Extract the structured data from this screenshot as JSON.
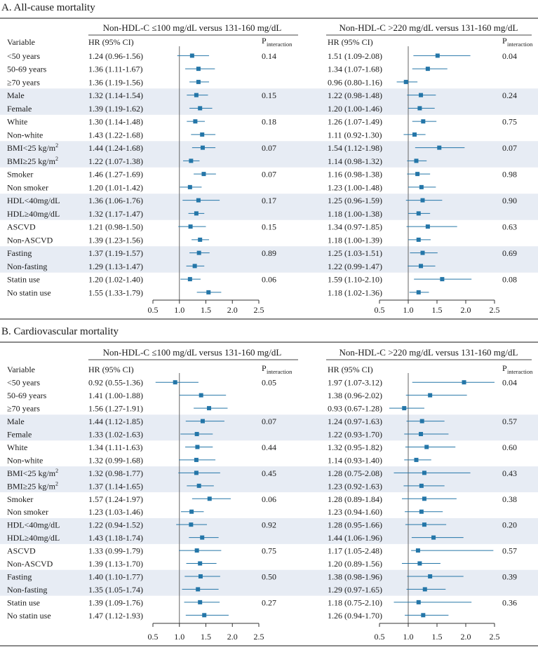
{
  "chart_data": [
    {
      "type": "forest",
      "title": "A. All-cause mortality",
      "column_headers": {
        "variable": "Variable",
        "hr": "HR (95% CI)",
        "p_main": "P",
        "p_sub": "interaction"
      },
      "colors": {
        "marker": "#2476a8",
        "band": "#e7ecf4",
        "axis": "#333333",
        "rule": "#444444"
      },
      "xlim": [
        0.5,
        2.5
      ],
      "ticks": [
        0.5,
        1.0,
        1.5,
        2.0,
        2.5
      ],
      "tick_labels": [
        "0.5",
        "1.0",
        "1.5",
        "2.0",
        "2.5"
      ],
      "reference_line": 1.0,
      "band_groups": [
        1,
        3,
        5,
        7
      ],
      "labels": [
        "<50 years",
        "50-69 years",
        "≥70 years",
        "Male",
        "Female",
        "White",
        "Non-white",
        "BMI<25 kg/m²",
        "BMI≥25 kg/m²",
        "Smoker",
        "Non smoker",
        "HDL<40mg/dL",
        "HDL≥40mg/dL",
        "ASCVD",
        "Non-ASCVD",
        "Fasting",
        "Non-fasting",
        "Statin use",
        "No statin use"
      ],
      "groups": [
        3,
        2,
        2,
        2,
        2,
        2,
        2,
        2,
        2
      ],
      "panels": [
        {
          "title": "Non-HDL-C ≤100 mg/dL versus 131-160 mg/dL",
          "ci_text": [
            "1.24 (0.96-1.56)",
            "1.36 (1.11-1.67)",
            "1.36 (1.19-1.56)",
            "1.32 (1.14-1.54)",
            "1.39 (1.19-1.62)",
            "1.30 (1.14-1.48)",
            "1.43 (1.22-1.68)",
            "1.44 (1.24-1.68)",
            "1.22 (1.07-1.38)",
            "1.46 (1.27-1.69)",
            "1.20 (1.01-1.42)",
            "1.36 (1.06-1.76)",
            "1.32 (1.17-1.47)",
            "1.21 (0.98-1.50)",
            "1.39 (1.23-1.56)",
            "1.37 (1.19-1.57)",
            "1.29 (1.13-1.47)",
            "1.20 (1.02-1.40)",
            "1.55 (1.33-1.79)"
          ],
          "hr": [
            1.24,
            1.36,
            1.36,
            1.32,
            1.39,
            1.3,
            1.43,
            1.44,
            1.22,
            1.46,
            1.2,
            1.36,
            1.32,
            1.21,
            1.39,
            1.37,
            1.29,
            1.2,
            1.55
          ],
          "lo": [
            0.96,
            1.11,
            1.19,
            1.14,
            1.19,
            1.14,
            1.22,
            1.24,
            1.07,
            1.27,
            1.01,
            1.06,
            1.17,
            0.98,
            1.23,
            1.19,
            1.13,
            1.02,
            1.33
          ],
          "hi": [
            1.56,
            1.67,
            1.56,
            1.54,
            1.62,
            1.48,
            1.68,
            1.68,
            1.38,
            1.69,
            1.42,
            1.76,
            1.47,
            1.5,
            1.56,
            1.57,
            1.47,
            1.4,
            1.79
          ],
          "p_interaction": [
            "0.14",
            "0.15",
            "0.18",
            "0.07",
            "0.07",
            "0.17",
            "0.15",
            "0.89",
            "0.06"
          ]
        },
        {
          "title": "Non-HDL-C >220 mg/dL versus 131-160 mg/dL",
          "ci_text": [
            "1.51 (1.09-2.08)",
            "1.34 (1.07-1.68)",
            "0.96 (0.80-1.16)",
            "1.22 (0.98-1.48)",
            "1.20 (1.00-1.46)",
            "1.26 (1.07-1.49)",
            "1.11 (0.92-1.30)",
            "1.54 (1.12-1.98)",
            "1.14 (0.98-1.32)",
            "1.16 (0.98-1.38)",
            "1.23 (1.00-1.48)",
            "1.25 (0.96-1.59)",
            "1.18 (1.00-1.38)",
            "1.34 (0.97-1.85)",
            "1.18 (1.00-1.39)",
            "1.25 (1.03-1.51)",
            "1.22 (0.99-1.47)",
            "1.59 (1.10-2.10)",
            "1.18 (1.02-1.36)"
          ],
          "hr": [
            1.51,
            1.34,
            0.96,
            1.22,
            1.2,
            1.26,
            1.11,
            1.54,
            1.14,
            1.16,
            1.23,
            1.25,
            1.18,
            1.34,
            1.18,
            1.25,
            1.22,
            1.59,
            1.18
          ],
          "lo": [
            1.09,
            1.07,
            0.8,
            0.98,
            1.0,
            1.07,
            0.92,
            1.12,
            0.98,
            0.98,
            1.0,
            0.96,
            1.0,
            0.97,
            1.0,
            1.03,
            0.99,
            1.1,
            1.02
          ],
          "hi": [
            2.08,
            1.68,
            1.16,
            1.48,
            1.46,
            1.49,
            1.3,
            1.98,
            1.32,
            1.38,
            1.48,
            1.59,
            1.38,
            1.85,
            1.39,
            1.51,
            1.47,
            2.1,
            1.36
          ],
          "p_interaction": [
            "0.04",
            "0.24",
            "0.75",
            "0.07",
            "0.98",
            "0.90",
            "0.63",
            "0.69",
            "0.08"
          ]
        }
      ]
    },
    {
      "type": "forest",
      "title": "B. Cardiovascular mortality",
      "column_headers": {
        "variable": "Variable",
        "hr": "HR (95% CI)",
        "p_main": "P",
        "p_sub": "interaction"
      },
      "colors": {
        "marker": "#2476a8",
        "band": "#e7ecf4",
        "axis": "#333333",
        "rule": "#444444"
      },
      "xlim": [
        0.5,
        2.5
      ],
      "ticks": [
        0.5,
        1.0,
        1.5,
        2.0,
        2.5
      ],
      "tick_labels": [
        "0.5",
        "1.0",
        "1.5",
        "2.0",
        "2.5"
      ],
      "reference_line": 1.0,
      "band_groups": [
        1,
        3,
        5,
        7
      ],
      "labels": [
        "<50 years",
        "50-69 years",
        "≥70 years",
        "Male",
        "Female",
        "White",
        "Non-white",
        "BMI<25 kg/m²",
        "BMI≥25 kg/m²",
        "Smoker",
        "Non smoker",
        "HDL<40mg/dL",
        "HDL≥40mg/dL",
        "ASCVD",
        "Non-ASCVD",
        "Fasting",
        "Non-fasting",
        "Statin use",
        "No statin use"
      ],
      "groups": [
        3,
        2,
        2,
        2,
        2,
        2,
        2,
        2,
        2
      ],
      "panels": [
        {
          "title": "Non-HDL-C ≤100 mg/dL versus 131-160 mg/dL",
          "ci_text": [
            "0.92 (0.55-1.36)",
            "1.41 (1.00-1.88)",
            "1.56 (1.27-1.91)",
            "1.44 (1.12-1.85)",
            "1.33 (1.02-1.63)",
            "1.34 (1.11-1.63)",
            "1.32 (0.99-1.68)",
            "1.32 (0.98-1.77)",
            "1.37 (1.14-1.65)",
            "1.57 (1.24-1.97)",
            "1.23 (1.03-1.46)",
            "1.22 (0.94-1.52)",
            "1.43 (1.18-1.74)",
            "1.33 (0.99-1.79)",
            "1.39 (1.13-1.70)",
            "1.40 (1.10-1.77)",
            "1.35 (1.05-1.74)",
            "1.39 (1.09-1.76)",
            "1.47 (1.12-1.93)"
          ],
          "hr": [
            0.92,
            1.41,
            1.56,
            1.44,
            1.33,
            1.34,
            1.32,
            1.32,
            1.37,
            1.57,
            1.23,
            1.22,
            1.43,
            1.33,
            1.39,
            1.4,
            1.35,
            1.39,
            1.47
          ],
          "lo": [
            0.55,
            1.0,
            1.27,
            1.12,
            1.02,
            1.11,
            0.99,
            0.98,
            1.14,
            1.24,
            1.03,
            0.94,
            1.18,
            0.99,
            1.13,
            1.1,
            1.05,
            1.09,
            1.12
          ],
          "hi": [
            1.36,
            1.88,
            1.91,
            1.85,
            1.63,
            1.63,
            1.68,
            1.77,
            1.65,
            1.97,
            1.46,
            1.52,
            1.74,
            1.79,
            1.7,
            1.77,
            1.74,
            1.76,
            1.93
          ],
          "p_interaction": [
            "0.05",
            "0.07",
            "0.44",
            "0.45",
            "0.06",
            "0.92",
            "0.75",
            "0.50",
            "0.27"
          ]
        },
        {
          "title": "Non-HDL-C >220 mg/dL versus 131-160 mg/dL",
          "ci_text": [
            "1.97 (1.07-3.12)",
            "1.38 (0.96-2.02)",
            "0.93 (0.67-1.28)",
            "1.24 (0.97-1.63)",
            "1.22 (0.93-1.70)",
            "1.32 (0.95-1.82)",
            "1.14 (0.93-1.40)",
            "1.28 (0.75-2.08)",
            "1.23 (0.92-1.63)",
            "1.28 (0.89-1.84)",
            "1.23 (0.94-1.60)",
            "1.28 (0.95-1.66)",
            "1.44 (1.06-1.96)",
            "1.17 (1.05-2.48)",
            "1.20 (0.89-1.56)",
            "1.38 (0.98-1.96)",
            "1.29 (0.97-1.65)",
            "1.18 (0.75-2.10)",
            "1.26 (0.94-1.70)"
          ],
          "hr": [
            1.97,
            1.38,
            0.93,
            1.24,
            1.22,
            1.32,
            1.14,
            1.28,
            1.23,
            1.28,
            1.23,
            1.28,
            1.44,
            1.17,
            1.2,
            1.38,
            1.29,
            1.18,
            1.26
          ],
          "lo": [
            1.07,
            0.96,
            0.67,
            0.97,
            0.93,
            0.95,
            0.93,
            0.75,
            0.92,
            0.89,
            0.94,
            0.95,
            1.06,
            1.05,
            0.89,
            0.98,
            0.97,
            0.75,
            0.94
          ],
          "hi": [
            3.12,
            2.02,
            1.28,
            1.63,
            1.7,
            1.82,
            1.4,
            2.08,
            1.63,
            1.84,
            1.6,
            1.66,
            1.96,
            2.48,
            1.56,
            1.96,
            1.65,
            2.1,
            1.7
          ],
          "p_interaction": [
            "0.04",
            "0.57",
            "0.60",
            "0.43",
            "0.38",
            "0.20",
            "0.57",
            "0.39",
            "0.36"
          ]
        }
      ]
    }
  ]
}
